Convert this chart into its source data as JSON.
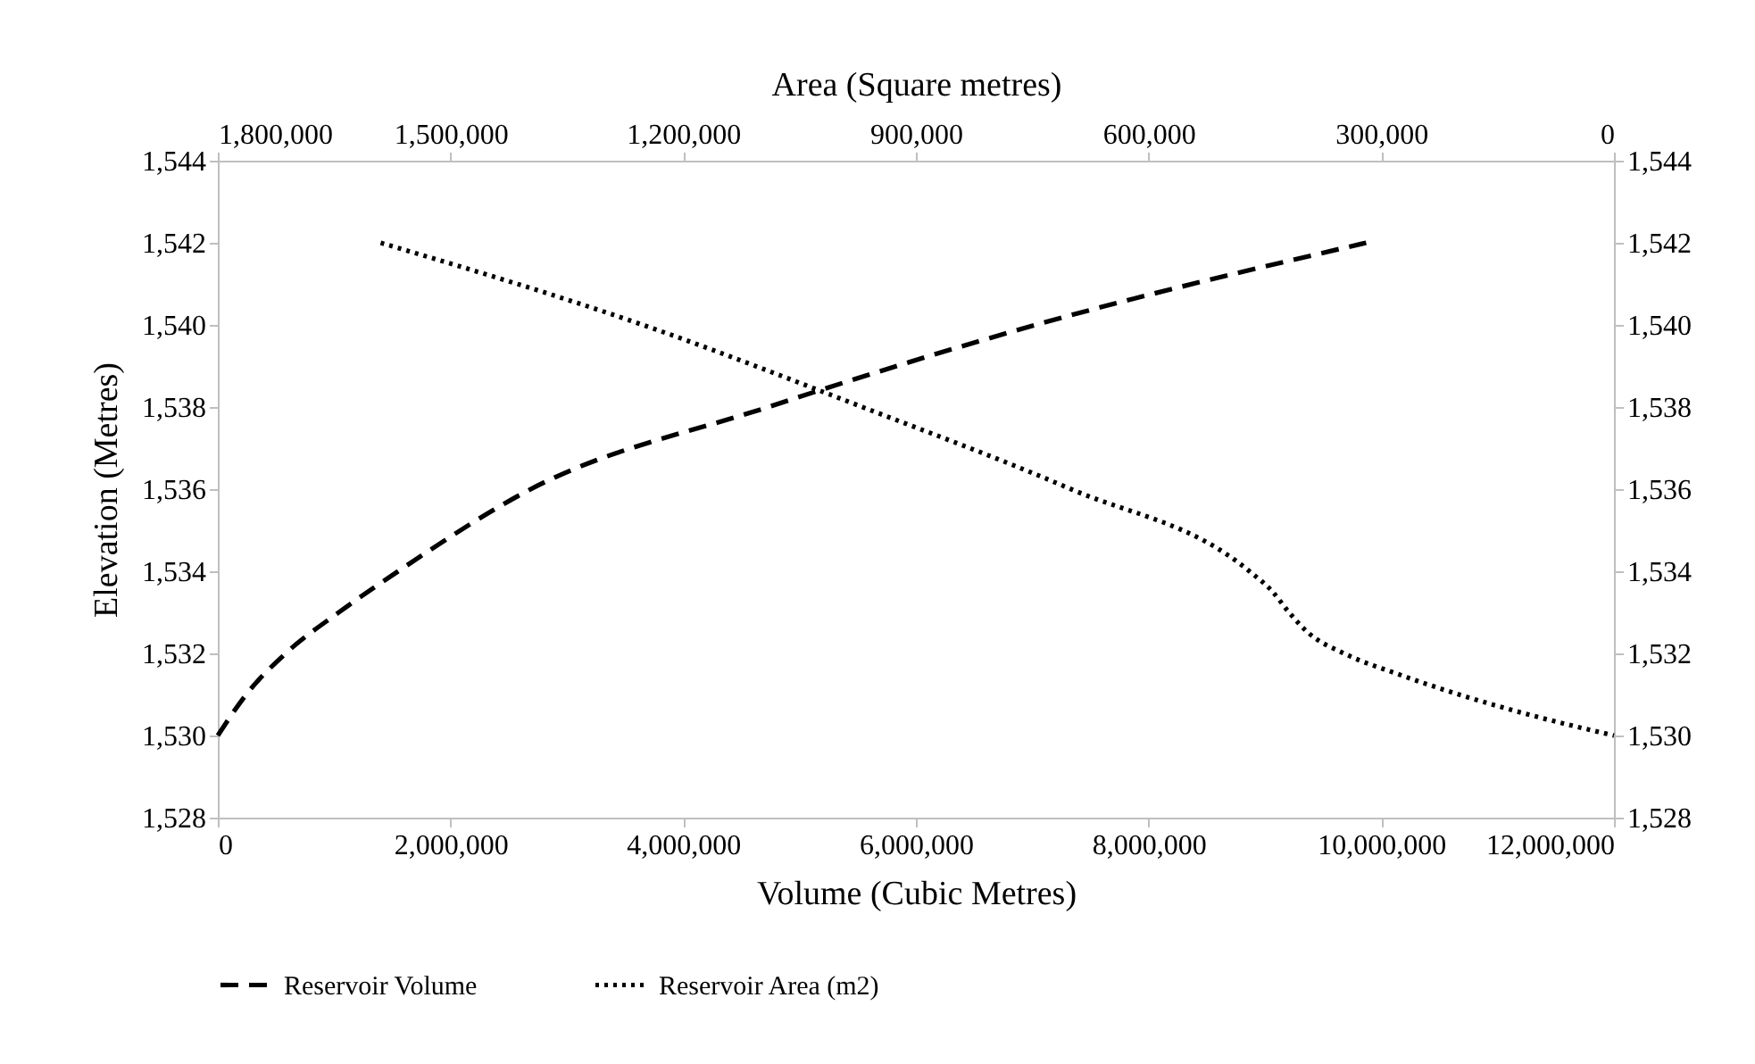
{
  "chart_data": {
    "type": "line",
    "xlabel": "Volume (Cubic Metres)",
    "x2label": "Area (Square metres)",
    "ylabel": "Elevation (Metres)",
    "xlim": [
      0,
      12000000
    ],
    "xticks": [
      0,
      {
        "value": 2000000,
        "label": "2,000,000"
      },
      {
        "value": 4000000,
        "label": "4,000,000"
      },
      {
        "value": 6000000,
        "label": "6,000,000"
      },
      {
        "value": 8000000,
        "label": "8,000,000"
      },
      {
        "value": 10000000,
        "label": "10,000,000"
      },
      {
        "value": 12000000,
        "label": "12,000,000"
      }
    ],
    "x2lim": [
      1800000,
      0
    ],
    "x2ticks": [
      {
        "value": 1800000,
        "label": "1,800,000"
      },
      {
        "value": 1500000,
        "label": "1,500,000"
      },
      {
        "value": 1200000,
        "label": "1,200,000"
      },
      {
        "value": 900000,
        "label": "900,000"
      },
      {
        "value": 600000,
        "label": "600,000"
      },
      {
        "value": 300000,
        "label": "300,000"
      },
      0
    ],
    "ylim": [
      1528,
      1544
    ],
    "yticks": [
      {
        "value": 1528,
        "label": "1,528"
      },
      {
        "value": 1530,
        "label": "1,530"
      },
      {
        "value": 1532,
        "label": "1,532"
      },
      {
        "value": 1534,
        "label": "1,534"
      },
      {
        "value": 1536,
        "label": "1,536"
      },
      {
        "value": 1538,
        "label": "1,538"
      },
      {
        "value": 1540,
        "label": "1,540"
      },
      {
        "value": 1542,
        "label": "1,542"
      },
      {
        "value": 1544,
        "label": "1,544"
      }
    ],
    "y2lim": [
      1528,
      1544
    ],
    "y2ticks": [
      {
        "value": 1528,
        "label": "1,528"
      },
      {
        "value": 1530,
        "label": "1,530"
      },
      {
        "value": 1532,
        "label": "1,532"
      },
      {
        "value": 1534,
        "label": "1,534"
      },
      {
        "value": 1536,
        "label": "1,536"
      },
      {
        "value": 1538,
        "label": "1,538"
      },
      {
        "value": 1540,
        "label": "1,540"
      },
      {
        "value": 1542,
        "label": "1,542"
      },
      {
        "value": 1544,
        "label": "1,544"
      }
    ],
    "grid": false,
    "legend": "bottom",
    "marker": "none",
    "series": [
      {
        "name": "Reservoir Volume",
        "color": "#000000",
        "line_style": "dashed",
        "x": [
          0,
          245000,
          583000,
          1040000,
          1550000,
          2690000,
          4730000,
          7030000,
          9870000
        ],
        "values": [
          1530,
          1531,
          1532,
          1533,
          1534,
          1536,
          1538,
          1540,
          1542
        ]
      },
      {
        "name": "Reservoir Area (m2)",
        "color": "#000000",
        "line_style": "dotted",
        "axis": "x2",
        "x": [
          1590000,
          1252000,
          969000,
          700000,
          470000,
          440000,
          419000,
          394000,
          348000,
          279000,
          200000,
          108000,
          0
        ],
        "values": [
          1542,
          1540,
          1538,
          1536,
          1534,
          1533.5,
          1533,
          1532.5,
          1532,
          1531.5,
          1531,
          1530.5,
          1530
        ]
      }
    ]
  }
}
